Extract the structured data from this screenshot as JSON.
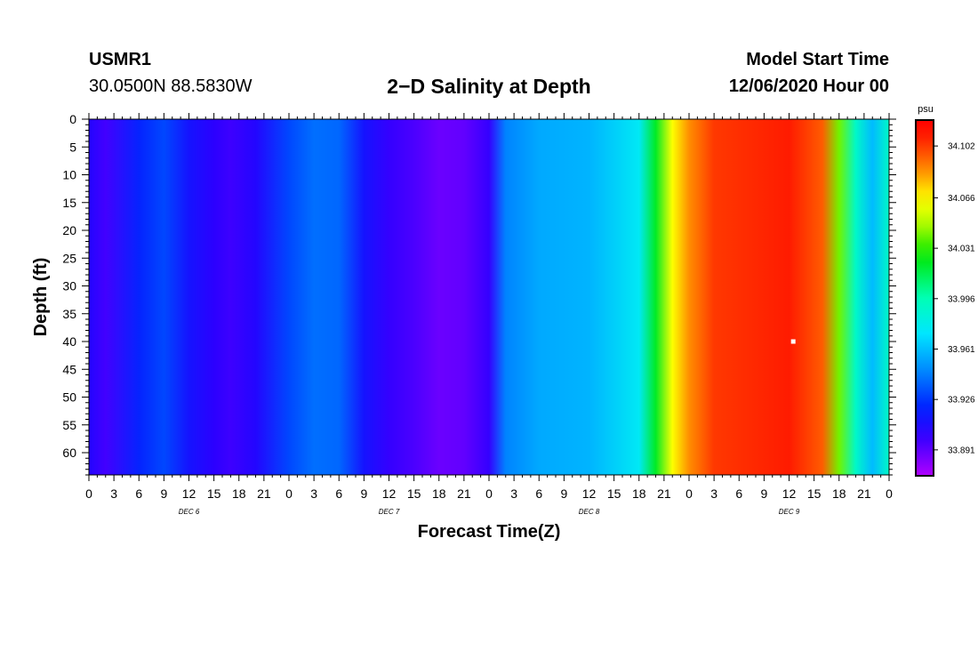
{
  "header": {
    "station": "USMR1",
    "coordinates": "30.0500N 88.5830W",
    "title": "2−D Salinity at Depth",
    "start_label": "Model Start Time",
    "start_value": "12/06/2020 Hour 00"
  },
  "chart_data": {
    "type": "heatmap",
    "title": "2−D Salinity at Depth",
    "xlabel": "Forecast Time(Z)",
    "ylabel": "Depth (ft)",
    "x_range_hours": [
      0,
      96
    ],
    "y_range_ft": [
      0,
      64
    ],
    "x_tick_labels": [
      "0",
      "3",
      "6",
      "9",
      "12",
      "15",
      "18",
      "21",
      "0",
      "3",
      "6",
      "9",
      "12",
      "15",
      "18",
      "21",
      "0",
      "3",
      "6",
      "9",
      "12",
      "15",
      "18",
      "21",
      "0",
      "3",
      "6",
      "9",
      "12",
      "15",
      "18",
      "21",
      "0"
    ],
    "y_ticks": [
      0,
      5,
      10,
      15,
      20,
      25,
      30,
      35,
      40,
      45,
      50,
      55,
      60
    ],
    "day_labels": [
      {
        "label": "DEC  6",
        "hour": 12
      },
      {
        "label": "DEC  7",
        "hour": 36
      },
      {
        "label": "DEC  8",
        "hour": 60
      },
      {
        "label": "DEC  9",
        "hour": 84
      }
    ],
    "colorbar": {
      "unit": "psu",
      "min": 33.873,
      "max": 34.12,
      "tick_labels": [
        "34.102",
        "34.066",
        "34.031",
        "33.996",
        "33.961",
        "33.926",
        "33.891"
      ],
      "tick_values": [
        34.102,
        34.066,
        34.031,
        33.996,
        33.961,
        33.926,
        33.891
      ]
    },
    "surface_profile": [
      {
        "hour": 0,
        "value": 33.905
      },
      {
        "hour": 2,
        "value": 33.897
      },
      {
        "hour": 6,
        "value": 33.92
      },
      {
        "hour": 9,
        "value": 33.93
      },
      {
        "hour": 12,
        "value": 33.912
      },
      {
        "hour": 15,
        "value": 33.902
      },
      {
        "hour": 17,
        "value": 33.898
      },
      {
        "hour": 20,
        "value": 33.905
      },
      {
        "hour": 24,
        "value": 33.93
      },
      {
        "hour": 27,
        "value": 33.94
      },
      {
        "hour": 30,
        "value": 33.938
      },
      {
        "hour": 33,
        "value": 33.912
      },
      {
        "hour": 36,
        "value": 33.9
      },
      {
        "hour": 39,
        "value": 33.895
      },
      {
        "hour": 42,
        "value": 33.888
      },
      {
        "hour": 45,
        "value": 33.89
      },
      {
        "hour": 48,
        "value": 33.9
      },
      {
        "hour": 50,
        "value": 33.945
      },
      {
        "hour": 54,
        "value": 33.955
      },
      {
        "hour": 60,
        "value": 33.958
      },
      {
        "hour": 66,
        "value": 33.975
      },
      {
        "hour": 68,
        "value": 34.02
      },
      {
        "hour": 70,
        "value": 34.065
      },
      {
        "hour": 72,
        "value": 34.085
      },
      {
        "hour": 75,
        "value": 34.102
      },
      {
        "hour": 84,
        "value": 34.11
      },
      {
        "hour": 88,
        "value": 34.095
      },
      {
        "hour": 90,
        "value": 34.04
      },
      {
        "hour": 92,
        "value": 33.99
      },
      {
        "hour": 94,
        "value": 33.96
      },
      {
        "hour": 96,
        "value": 33.99
      }
    ],
    "marker": {
      "hour": 84.5,
      "depth_ft": 40
    }
  }
}
